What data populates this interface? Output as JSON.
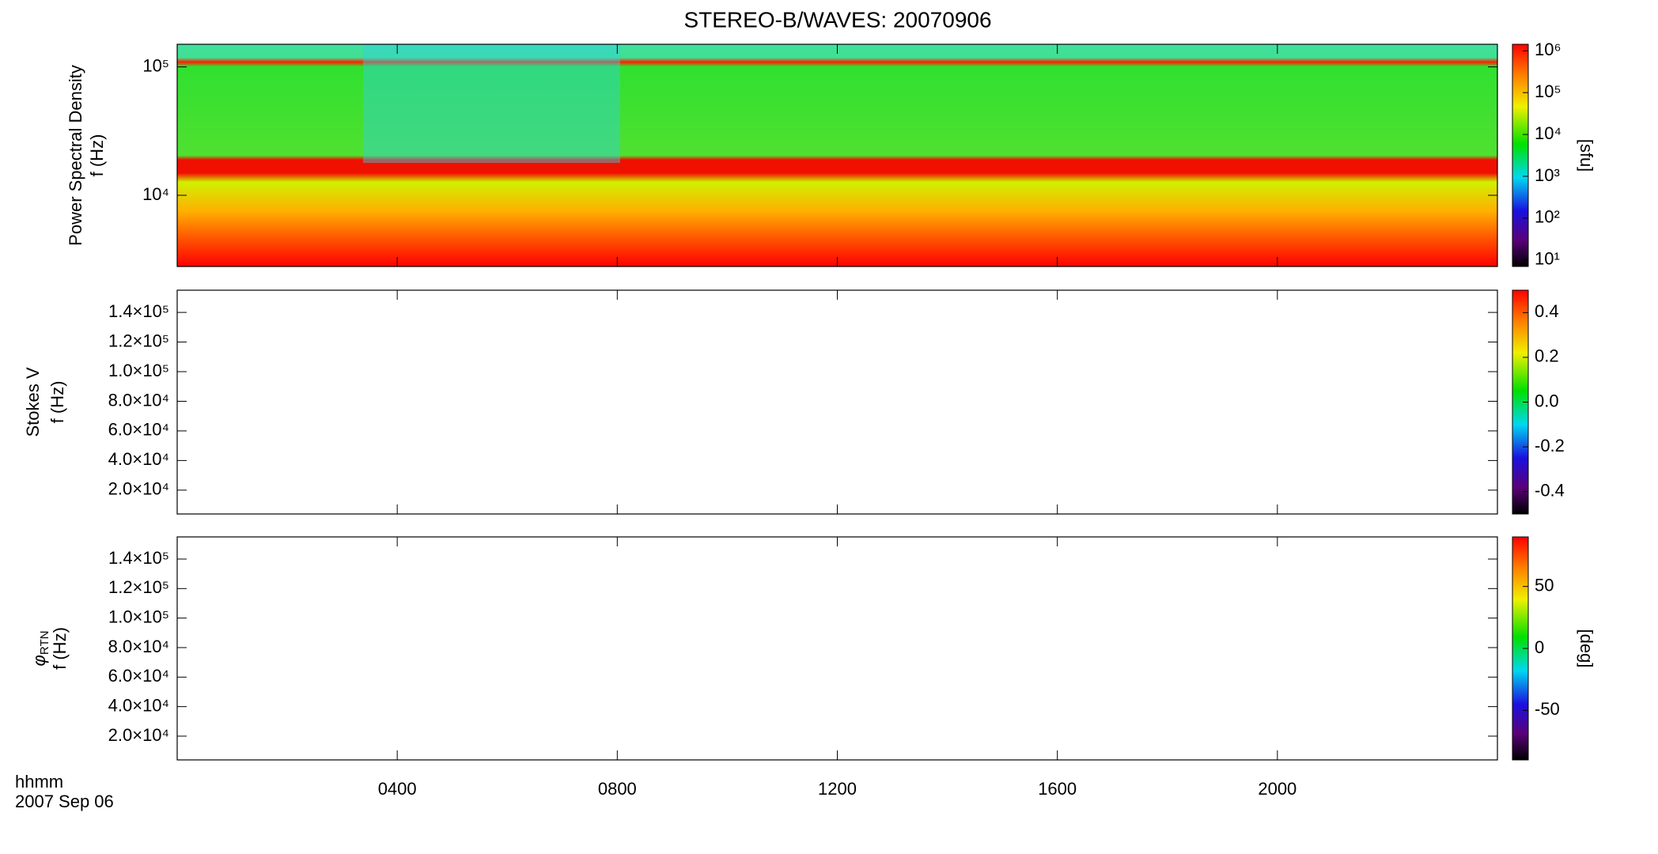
{
  "chart_data": [
    {
      "type": "spectrogram",
      "title": "STEREO-B/WAVES: 20070906",
      "ylabel": "Power Spectral Density",
      "ylabel2": "f (Hz)",
      "xlim": [
        0,
        24
      ],
      "ylim": [
        2790,
        150000
      ],
      "log_y": true,
      "yticks": [
        {
          "value": 10000,
          "label": "10⁴"
        },
        {
          "value": 100000,
          "label": "10⁵"
        }
      ],
      "colorbar": {
        "label": "[sfu]",
        "log": true,
        "lim": [
          7,
          1430000
        ],
        "ticks": [
          {
            "value": 10,
            "label": "10¹"
          },
          {
            "value": 100,
            "label": "10²"
          },
          {
            "value": 1000,
            "label": "10³"
          },
          {
            "value": 10000,
            "label": "10⁴"
          },
          {
            "value": 100000,
            "label": "10⁵"
          },
          {
            "value": 1000000,
            "label": "10⁶"
          }
        ]
      }
    },
    {
      "type": "spectrogram",
      "ylabel": "Stokes V",
      "ylabel2": "f (Hz)",
      "xlim": [
        0,
        24
      ],
      "ylim": [
        3900,
        155000
      ],
      "log_y": false,
      "yticks": [
        {
          "value": 20000,
          "label": "2.0×10⁴"
        },
        {
          "value": 40000,
          "label": "4.0×10⁴"
        },
        {
          "value": 60000,
          "label": "6.0×10⁴"
        },
        {
          "value": 80000,
          "label": "8.0×10⁴"
        },
        {
          "value": 100000,
          "label": "1.0×10⁵"
        },
        {
          "value": 120000,
          "label": "1.2×10⁵"
        },
        {
          "value": 140000,
          "label": "1.4×10⁵"
        }
      ],
      "colorbar": {
        "log": false,
        "lim": [
          -0.5,
          0.5
        ],
        "ticks": [
          -0.4,
          -0.2,
          {
            "value": 0,
            "label": "0.0"
          },
          0.2,
          0.4
        ]
      }
    },
    {
      "type": "spectrogram",
      "ylabel_symbol": "φ",
      "ylabel_subscript": "RTN",
      "ylabel2": "f (Hz)",
      "xlim": [
        0,
        24
      ],
      "ylim": [
        3900,
        155000
      ],
      "log_y": false,
      "yticks": [
        {
          "value": 20000,
          "label": "2.0×10⁴"
        },
        {
          "value": 40000,
          "label": "4.0×10⁴"
        },
        {
          "value": 60000,
          "label": "6.0×10⁴"
        },
        {
          "value": 80000,
          "label": "8.0×10⁴"
        },
        {
          "value": 100000,
          "label": "1.0×10⁵"
        },
        {
          "value": 120000,
          "label": "1.2×10⁵"
        },
        {
          "value": 140000,
          "label": "1.4×10⁵"
        }
      ],
      "colorbar": {
        "label": "[deg]",
        "log": false,
        "lim": [
          -90,
          90
        ],
        "ticks": [
          -50,
          0,
          50
        ]
      },
      "xlabel": "hhmm",
      "date_label": "2007 Sep 06",
      "xticks": [
        {
          "value": 4,
          "label": "0400"
        },
        {
          "value": 8,
          "label": "0800"
        },
        {
          "value": 12,
          "label": "1200"
        },
        {
          "value": 16,
          "label": "1600"
        },
        {
          "value": 20,
          "label": "2000"
        }
      ]
    }
  ]
}
